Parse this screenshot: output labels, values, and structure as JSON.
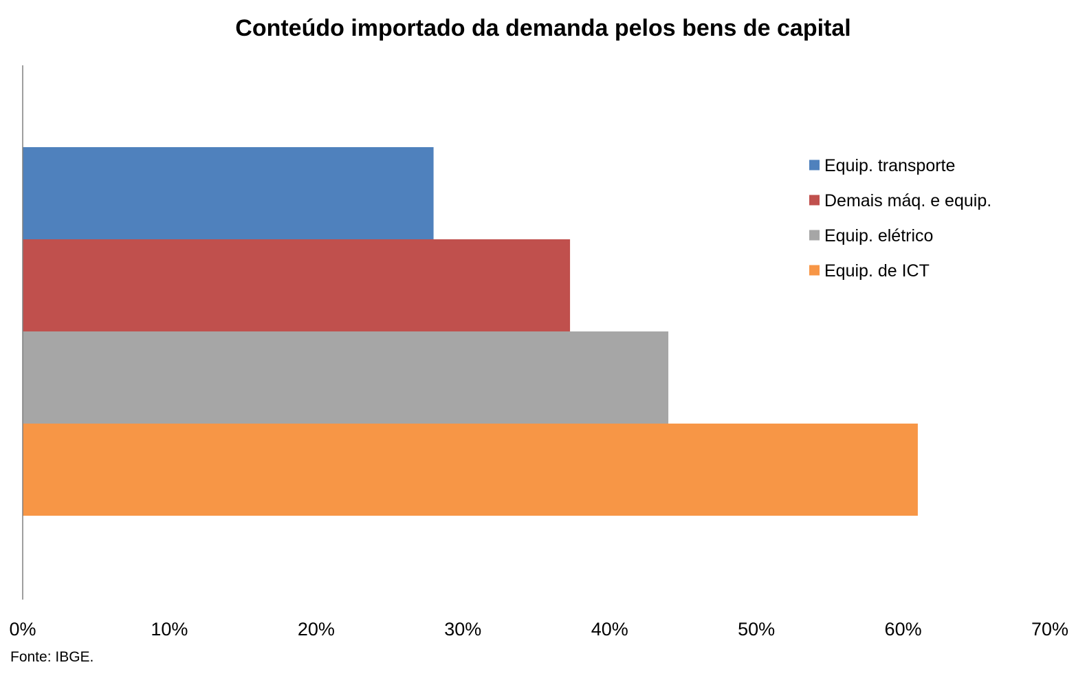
{
  "chart_data": {
    "type": "bar",
    "orientation": "horizontal",
    "title": "Conteúdo importado da demanda pelos bens de capital",
    "source": "Fonte: IBGE.",
    "xlim": [
      0,
      70
    ],
    "x_ticks": [
      "0%",
      "10%",
      "20%",
      "30%",
      "40%",
      "50%",
      "60%",
      "70%"
    ],
    "grid": false,
    "legend_position": "right",
    "series": [
      {
        "name": "Equip. transporte",
        "value": 28,
        "color": "#4F81BD"
      },
      {
        "name": "Demais máq. e equip.",
        "value": 37.3,
        "color": "#C0504D"
      },
      {
        "name": "Equip. elétrico",
        "value": 44,
        "color": "#A6A6A6"
      },
      {
        "name": "Equip. de ICT",
        "value": 61,
        "color": "#F79646"
      }
    ]
  }
}
